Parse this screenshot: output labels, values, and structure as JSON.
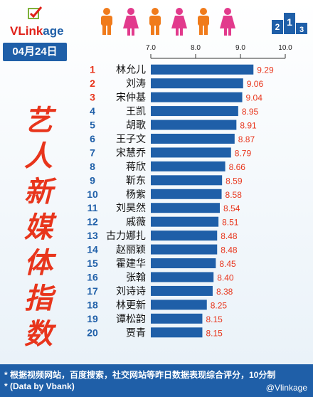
{
  "brand": {
    "name_part1": "VLink",
    "name_part2": "age"
  },
  "date": "04月24日",
  "vertical_title": [
    "艺",
    "人",
    "新",
    "媒",
    "体",
    "指",
    "数"
  ],
  "podium_labels": [
    "2",
    "1",
    "3"
  ],
  "footer": {
    "note1": "* 根据视频网站，百度搜索，社交网站等昨日数据表现综合评分，10分制",
    "note2": "* (Data by Vbank)",
    "watermark": "@Vlinkage"
  },
  "colors": {
    "bar": "#1f5fa8",
    "value": "#e8351c",
    "rank_top": "#e8351c",
    "rank": "#1f5fa8",
    "name": "#111111",
    "male": "#f07b1b",
    "female": "#e23a8c"
  },
  "chart_data": {
    "type": "bar",
    "orientation": "horizontal",
    "xlim": [
      7.0,
      10.0
    ],
    "xticks": [
      "7.0",
      "8.0",
      "9.0",
      "10.0"
    ],
    "ranks": [
      "1",
      "2",
      "3",
      "4",
      "5",
      "6",
      "7",
      "8",
      "9",
      "10",
      "11",
      "12",
      "13",
      "14",
      "15",
      "16",
      "17",
      "18",
      "19",
      "20"
    ],
    "categories": [
      "林允儿",
      "刘涛",
      "宋仲基",
      "王凯",
      "胡歌",
      "王子文",
      "宋慧乔",
      "蒋欣",
      "靳东",
      "杨紫",
      "刘昊然",
      "戚薇",
      "古力娜扎",
      "赵丽颖",
      "霍建华",
      "张翰",
      "刘诗诗",
      "林更新",
      "谭松韵",
      "贾青"
    ],
    "values": [
      9.29,
      9.06,
      9.04,
      8.95,
      8.91,
      8.87,
      8.79,
      8.66,
      8.59,
      8.58,
      8.54,
      8.51,
      8.48,
      8.48,
      8.45,
      8.4,
      8.38,
      8.25,
      8.15,
      8.15
    ],
    "value_labels": [
      "9.29",
      "9.06",
      "9.04",
      "8.95",
      "8.91",
      "8.87",
      "8.79",
      "8.66",
      "8.59",
      "8.58",
      "8.54",
      "8.51",
      "8.48",
      "8.48",
      "8.45",
      "8.40",
      "8.38",
      "8.25",
      "8.15",
      "8.15"
    ]
  }
}
